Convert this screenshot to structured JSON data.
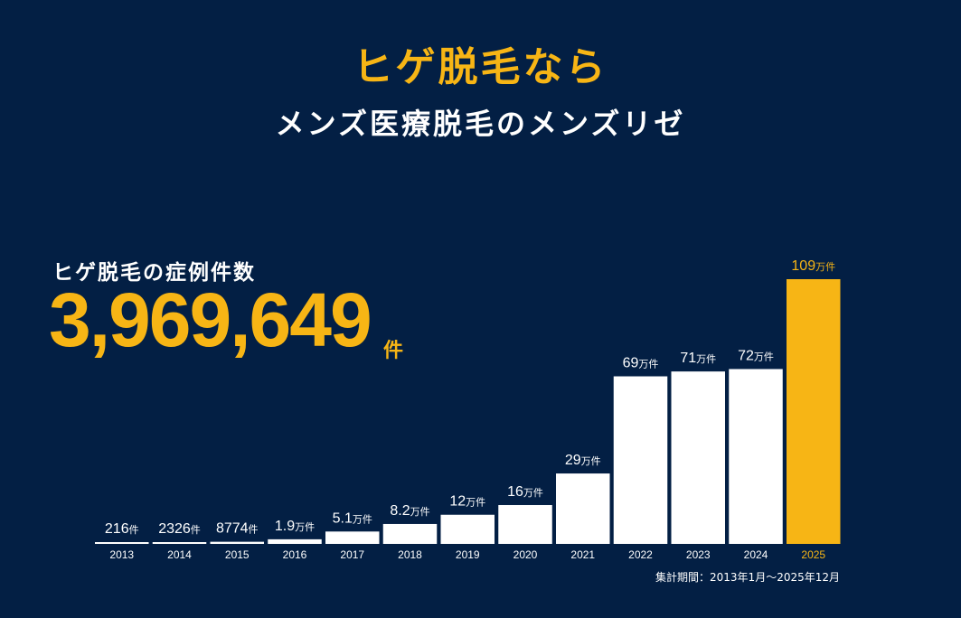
{
  "header": {
    "headline": "ヒゲ脱毛なら",
    "subheadline": "メンズ医療脱毛のメンズリゼ"
  },
  "summary": {
    "label": "ヒゲ脱毛の症例件数",
    "total": "3,969,649",
    "unit": "件"
  },
  "footnote": "集計期間：2013年1月〜2025年12月",
  "colors": {
    "background": "#031f44",
    "accent": "#f7b515",
    "bar": "#ffffff"
  },
  "chart_data": {
    "type": "bar",
    "title": "",
    "xlabel": "",
    "ylabel": "",
    "categories": [
      "2013",
      "2014",
      "2015",
      "2016",
      "2017",
      "2018",
      "2019",
      "2020",
      "2021",
      "2022",
      "2023",
      "2024",
      "2025"
    ],
    "values": [
      216,
      2326,
      8774,
      19000,
      51000,
      82000,
      120000,
      160000,
      290000,
      690000,
      710000,
      720000,
      1090000
    ],
    "labels": [
      {
        "num": "216",
        "unit": "件"
      },
      {
        "num": "2326",
        "unit": "件"
      },
      {
        "num": "8774",
        "unit": "件"
      },
      {
        "num": "1.9",
        "unit": "万件"
      },
      {
        "num": "5.1",
        "unit": "万件"
      },
      {
        "num": "8.2",
        "unit": "万件"
      },
      {
        "num": "12",
        "unit": "万件"
      },
      {
        "num": "16",
        "unit": "万件"
      },
      {
        "num": "29",
        "unit": "万件"
      },
      {
        "num": "69",
        "unit": "万件"
      },
      {
        "num": "71",
        "unit": "万件"
      },
      {
        "num": "72",
        "unit": "万件"
      },
      {
        "num": "109",
        "unit": "万件"
      }
    ],
    "highlight_index": 12,
    "ylim": [
      0,
      1090000
    ],
    "grid": false,
    "legend": "none"
  }
}
